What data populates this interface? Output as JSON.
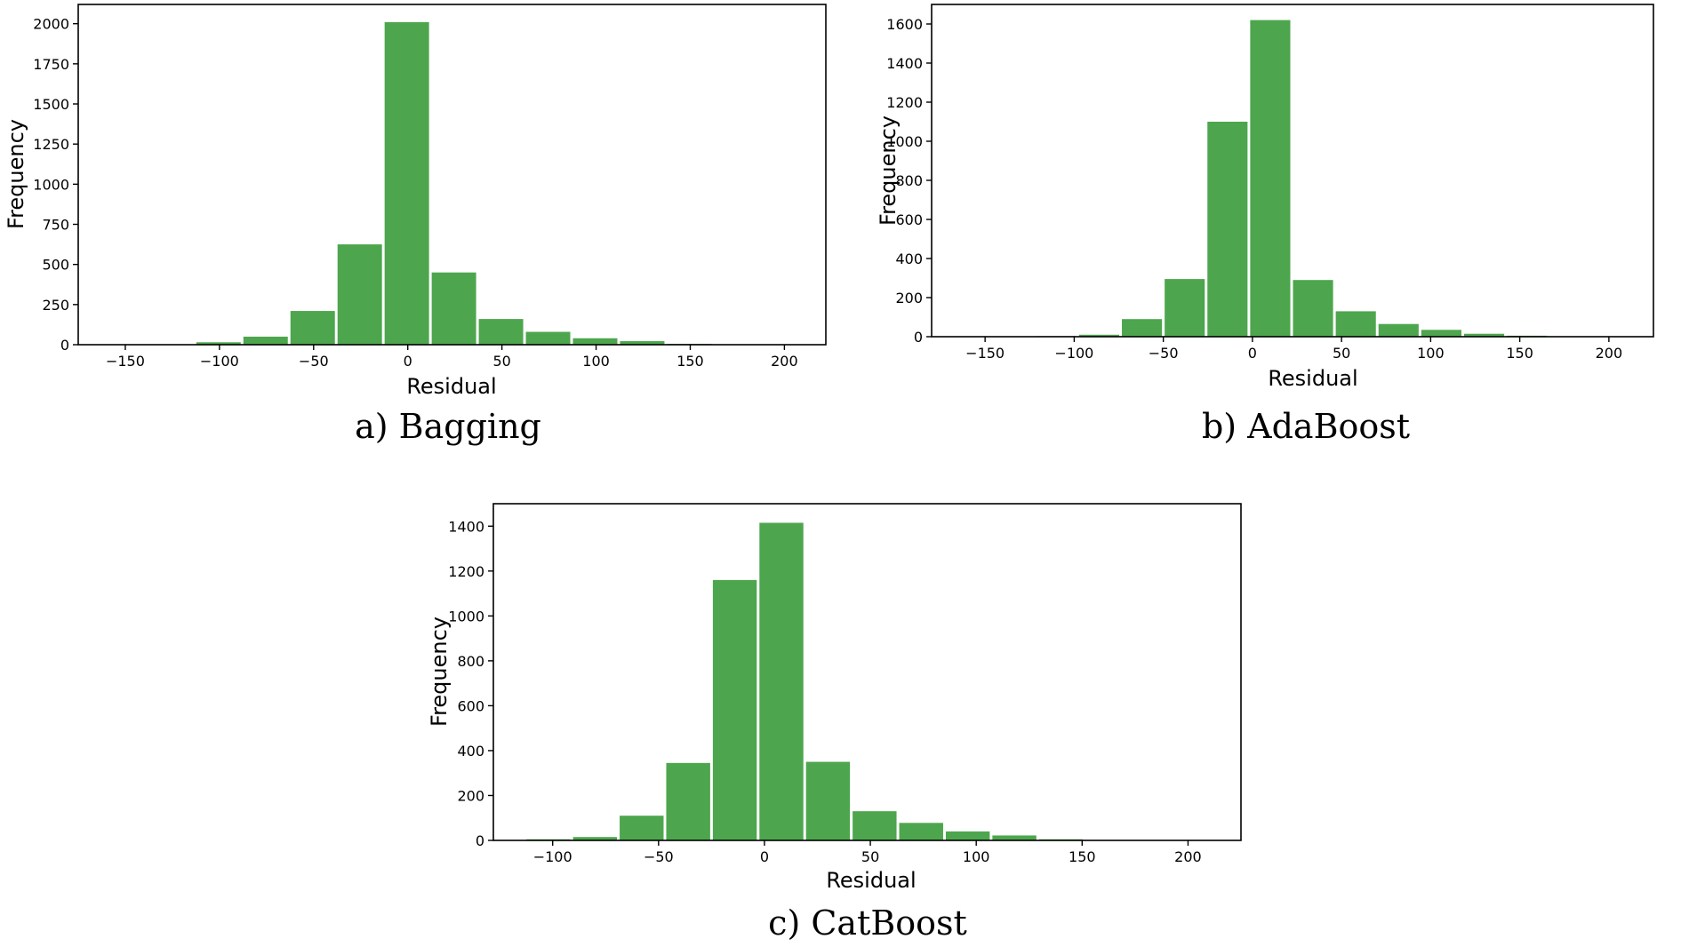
{
  "bar_color": "#4da64d",
  "chart_data": [
    {
      "type": "bar",
      "title": "",
      "caption": "a) Bagging",
      "xlabel": "Residual",
      "ylabel": "Frequency",
      "xlim": [
        -175,
        222
      ],
      "ylim": [
        0,
        2120
      ],
      "xticks": [
        -150,
        -100,
        -50,
        0,
        50,
        100,
        150,
        200
      ],
      "xtick_labels": [
        "−150",
        "−100",
        "−50",
        "0",
        "50",
        "100",
        "150",
        "200"
      ],
      "yticks": [
        0,
        250,
        500,
        750,
        1000,
        1250,
        1500,
        1750,
        2000
      ],
      "ytick_labels": [
        "0",
        "250",
        "500",
        "750",
        "1000",
        "1250",
        "1500",
        "1750",
        "2000"
      ],
      "bin_width": 25,
      "bars": [
        {
          "left": -113,
          "value": 15
        },
        {
          "left": -88,
          "value": 50
        },
        {
          "left": -63,
          "value": 210
        },
        {
          "left": -38,
          "value": 625
        },
        {
          "left": -13,
          "value": 2010
        },
        {
          "left": 12,
          "value": 450
        },
        {
          "left": 37,
          "value": 160
        },
        {
          "left": 62,
          "value": 80
        },
        {
          "left": 87,
          "value": 40
        },
        {
          "left": 112,
          "value": 22
        },
        {
          "left": 137,
          "value": 5
        }
      ]
    },
    {
      "type": "bar",
      "title": "",
      "caption": "b) AdaBoost",
      "xlabel": "Residual",
      "ylabel": "Frequency",
      "xlim": [
        -180,
        225
      ],
      "ylim": [
        0,
        1700
      ],
      "xticks": [
        -150,
        -100,
        -50,
        0,
        50,
        100,
        150,
        200
      ],
      "xtick_labels": [
        "−150",
        "−100",
        "−50",
        "0",
        "50",
        "100",
        "150",
        "200"
      ],
      "yticks": [
        0,
        200,
        400,
        600,
        800,
        1000,
        1200,
        1400,
        1600
      ],
      "ytick_labels": [
        "0",
        "200",
        "400",
        "600",
        "800",
        "1000",
        "1200",
        "1400",
        "1600"
      ],
      "bin_width": 24,
      "bars": [
        {
          "left": -122,
          "value": 3
        },
        {
          "left": -98,
          "value": 10
        },
        {
          "left": -74,
          "value": 90
        },
        {
          "left": -50,
          "value": 295
        },
        {
          "left": -26,
          "value": 1100
        },
        {
          "left": -2,
          "value": 1620
        },
        {
          "left": 22,
          "value": 290
        },
        {
          "left": 46,
          "value": 130
        },
        {
          "left": 70,
          "value": 65
        },
        {
          "left": 94,
          "value": 35
        },
        {
          "left": 118,
          "value": 15
        },
        {
          "left": 142,
          "value": 5
        }
      ]
    },
    {
      "type": "bar",
      "title": "",
      "caption": "c) CatBoost",
      "xlabel": "Residual",
      "ylabel": "Frequency",
      "xlim": [
        -128,
        225
      ],
      "ylim": [
        0,
        1500
      ],
      "xticks": [
        -100,
        -50,
        0,
        50,
        100,
        150,
        200
      ],
      "xtick_labels": [
        "−100",
        "−50",
        "0",
        "50",
        "100",
        "150",
        "200"
      ],
      "yticks": [
        0,
        200,
        400,
        600,
        800,
        1000,
        1200,
        1400
      ],
      "ytick_labels": [
        "0",
        "200",
        "400",
        "600",
        "800",
        "1000",
        "1200",
        "1400"
      ],
      "bin_width": 22,
      "bars": [
        {
          "left": -113,
          "value": 5
        },
        {
          "left": -91,
          "value": 15
        },
        {
          "left": -69,
          "value": 110
        },
        {
          "left": -47,
          "value": 345
        },
        {
          "left": -25,
          "value": 1160
        },
        {
          "left": -3,
          "value": 1415
        },
        {
          "left": 19,
          "value": 350
        },
        {
          "left": 41,
          "value": 130
        },
        {
          "left": 63,
          "value": 78
        },
        {
          "left": 85,
          "value": 40
        },
        {
          "left": 107,
          "value": 22
        },
        {
          "left": 129,
          "value": 5
        }
      ]
    }
  ]
}
